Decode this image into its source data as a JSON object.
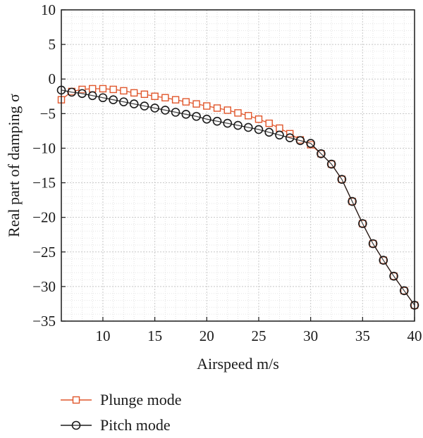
{
  "chart_data": {
    "type": "line",
    "xlabel": "Airspeed m/s",
    "ylabel": "Real part of damping σ",
    "xlim": [
      6,
      40
    ],
    "ylim": [
      -35,
      10
    ],
    "x_ticks": [
      10,
      15,
      20,
      25,
      30,
      35,
      40
    ],
    "y_ticks": [
      10,
      5,
      0,
      -5,
      -10,
      -15,
      -20,
      -25,
      -30,
      -35
    ],
    "x_tick_labels": [
      "10",
      "15",
      "20",
      "25",
      "30",
      "35",
      "40"
    ],
    "y_tick_labels": [
      "10",
      "5",
      "0",
      "−5",
      "−10",
      "−15",
      "−20",
      "−25",
      "−30",
      "−35"
    ],
    "grid": true,
    "legend_position": "bottom-left, below plot",
    "series": [
      {
        "name": "Plunge mode",
        "color": "#e0562b",
        "marker": "square",
        "x": [
          6,
          7,
          8,
          9,
          10,
          11,
          12,
          13,
          14,
          15,
          16,
          17,
          18,
          19,
          20,
          21,
          22,
          23,
          24,
          25,
          26,
          27,
          28,
          29,
          30,
          31,
          32,
          33,
          34,
          35,
          36,
          37,
          38,
          39,
          40
        ],
        "y": [
          -3.0,
          -1.8,
          -1.5,
          -1.4,
          -1.4,
          -1.5,
          -1.7,
          -2.0,
          -2.2,
          -2.5,
          -2.7,
          -3.0,
          -3.3,
          -3.6,
          -3.9,
          -4.2,
          -4.5,
          -4.9,
          -5.3,
          -5.8,
          -6.4,
          -7.1,
          -7.9,
          -8.8,
          -9.5,
          -10.8,
          -12.3,
          -14.5,
          -17.7,
          -20.9,
          -23.8,
          -26.2,
          -28.5,
          -30.6,
          -32.7
        ]
      },
      {
        "name": "Pitch mode",
        "color": "#1a1a1a",
        "marker": "circle",
        "x": [
          6,
          7,
          8,
          9,
          10,
          11,
          12,
          13,
          14,
          15,
          16,
          17,
          18,
          19,
          20,
          21,
          22,
          23,
          24,
          25,
          26,
          27,
          28,
          29,
          30,
          31,
          32,
          33,
          34,
          35,
          36,
          37,
          38,
          39,
          40
        ],
        "y": [
          -1.6,
          -1.9,
          -2.1,
          -2.4,
          -2.7,
          -3.0,
          -3.3,
          -3.6,
          -3.9,
          -4.2,
          -4.5,
          -4.8,
          -5.1,
          -5.4,
          -5.8,
          -6.1,
          -6.4,
          -6.7,
          -7.0,
          -7.3,
          -7.7,
          -8.1,
          -8.5,
          -8.9,
          -9.3,
          -10.8,
          -12.3,
          -14.5,
          -17.7,
          -20.9,
          -23.8,
          -26.2,
          -28.5,
          -30.6,
          -32.7
        ]
      }
    ]
  }
}
